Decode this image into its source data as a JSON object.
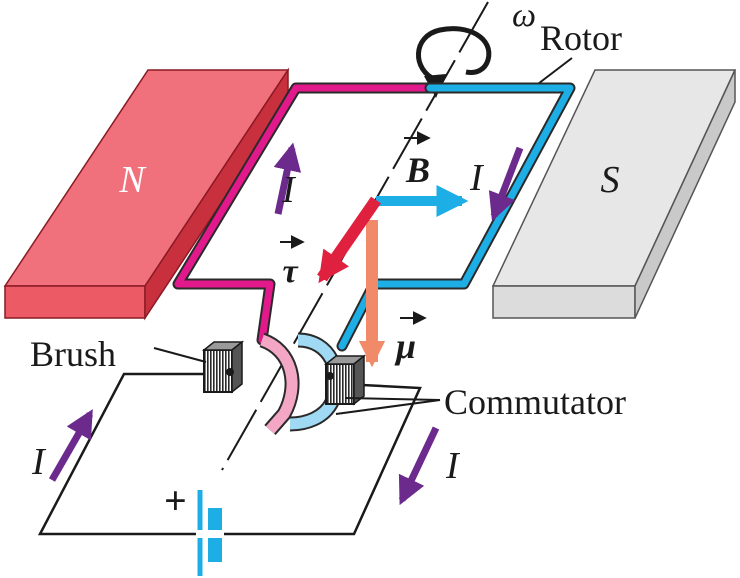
{
  "diagram": {
    "labels": {
      "rotor": "Rotor",
      "omega": "ω",
      "magnet_north": "N",
      "magnet_south": "S",
      "current_left_coil": "I",
      "current_right_coil": "I",
      "current_left_circuit": "I",
      "current_right_circuit": "I",
      "field": "B",
      "torque": "τ",
      "moment": "μ",
      "brush": "Brush",
      "commutator": "Commutator",
      "battery_plus": "+"
    },
    "colors": {
      "north_magnet_front": "#ec5a66",
      "north_magnet_top": "#f0717b",
      "north_magnet_side": "#c9303e",
      "south_magnet_front": "#e7e7e7",
      "south_magnet_side": "#c9c9c9",
      "coil_magenta": "#e2198b",
      "coil_cyan": "#1eaee6",
      "current_arrow": "#6b2a8c",
      "field_arrow": "#1eaee6",
      "torque_arrow": "#e0203f",
      "moment_arrow": "#f08a68",
      "wire": "#1a1a1a",
      "battery": "#1eaee6"
    }
  }
}
